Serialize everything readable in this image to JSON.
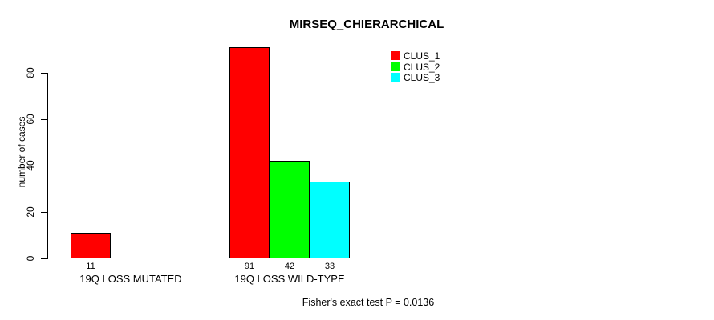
{
  "title": "MIRSEQ_CHIERARCHICAL",
  "footer": "Fisher's exact test P = 0.0136",
  "chart_data": {
    "type": "bar",
    "grouped": true,
    "title": "MIRSEQ_CHIERARCHICAL",
    "categories": [
      "19Q LOSS MUTATED",
      "19Q LOSS WILD-TYPE"
    ],
    "series": [
      {
        "name": "CLUS_1",
        "color": "#ff0000",
        "values": [
          11,
          91
        ]
      },
      {
        "name": "CLUS_2",
        "color": "#00ff00",
        "values": [
          0,
          42
        ]
      },
      {
        "name": "CLUS_3",
        "color": "#00ffff",
        "values": [
          0,
          33
        ]
      }
    ],
    "xlabel": "",
    "ylabel": "number of cases",
    "yticks": [
      0,
      20,
      40,
      60,
      80
    ],
    "ylim": [
      0,
      80
    ],
    "grid": false,
    "legend_position": "top-right",
    "bar_value_labels_shown": [
      "11",
      "91",
      "42",
      "33"
    ],
    "annotation": "Fisher's exact test P = 0.0136"
  }
}
